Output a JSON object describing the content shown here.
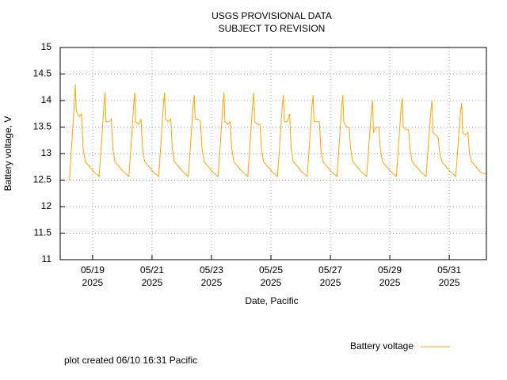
{
  "chart_data": {
    "type": "line",
    "title": "USGS PROVISIONAL DATA",
    "subtitle": "SUBJECT TO REVISION",
    "x_label": "Date, Pacific",
    "y_label": "Battery voltage, V",
    "footer": "plot created 06/10 16:31 Pacific",
    "legend": "bottom-right",
    "grid": true,
    "xlim": [
      17.91,
      32.25
    ],
    "ylim": [
      11,
      15
    ],
    "yticks": [
      11,
      11.5,
      12,
      12.5,
      13,
      13.5,
      14,
      14.5,
      15
    ],
    "xticks": [
      {
        "value": 19,
        "label": "05/19 2025"
      },
      {
        "value": 21,
        "label": "05/21 2025"
      },
      {
        "value": 23,
        "label": "05/23 2025"
      },
      {
        "value": 25,
        "label": "05/25 2025"
      },
      {
        "value": 27,
        "label": "05/27 2025"
      },
      {
        "value": 29,
        "label": "05/29 2025"
      },
      {
        "value": 31,
        "label": "05/31 2025"
      }
    ],
    "x": [
      18.22,
      18.3,
      18.38,
      18.42,
      18.45,
      18.55,
      18.63,
      18.68,
      18.75,
      18.9,
      19.05,
      19.22,
      19.3,
      19.38,
      19.42,
      19.45,
      19.55,
      19.63,
      19.68,
      19.75,
      19.9,
      20.05,
      20.22,
      20.3,
      20.38,
      20.42,
      20.45,
      20.55,
      20.63,
      20.68,
      20.75,
      20.9,
      21.05,
      21.22,
      21.3,
      21.38,
      21.42,
      21.45,
      21.55,
      21.63,
      21.68,
      21.75,
      21.9,
      22.05,
      22.22,
      22.3,
      22.38,
      22.42,
      22.45,
      22.55,
      22.63,
      22.68,
      22.75,
      22.9,
      23.05,
      23.22,
      23.3,
      23.38,
      23.42,
      23.45,
      23.55,
      23.63,
      23.68,
      23.75,
      23.9,
      24.05,
      24.22,
      24.3,
      24.38,
      24.42,
      24.45,
      24.55,
      24.63,
      24.68,
      24.75,
      24.9,
      25.05,
      25.22,
      25.3,
      25.38,
      25.42,
      25.45,
      25.55,
      25.63,
      25.68,
      25.75,
      25.9,
      26.05,
      26.22,
      26.3,
      26.38,
      26.42,
      26.45,
      26.55,
      26.63,
      26.68,
      26.75,
      26.9,
      27.05,
      27.22,
      27.3,
      27.38,
      27.42,
      27.45,
      27.55,
      27.63,
      27.68,
      27.75,
      27.9,
      28.05,
      28.22,
      28.3,
      28.38,
      28.42,
      28.45,
      28.55,
      28.63,
      28.68,
      28.75,
      28.9,
      29.05,
      29.22,
      29.3,
      29.38,
      29.42,
      29.45,
      29.55,
      29.63,
      29.68,
      29.75,
      29.9,
      30.05,
      30.22,
      30.3,
      30.38,
      30.42,
      30.45,
      30.55,
      30.63,
      30.68,
      30.75,
      30.9,
      31.05,
      31.22,
      31.3,
      31.38,
      31.42,
      31.45,
      31.55,
      31.63,
      31.68,
      31.75,
      31.9,
      32.05,
      32.25
    ],
    "series": [
      {
        "name": "Battery voltage",
        "color": "#ffa500",
        "values": [
          12.5,
          13.2,
          13.9,
          14.3,
          13.8,
          13.7,
          13.75,
          13.1,
          12.85,
          12.75,
          12.65,
          12.57,
          13.2,
          13.9,
          14.15,
          13.6,
          13.6,
          13.65,
          13.1,
          12.85,
          12.75,
          12.65,
          12.57,
          13.2,
          13.9,
          14.15,
          13.6,
          13.55,
          13.65,
          13.1,
          12.85,
          12.75,
          12.65,
          12.57,
          13.2,
          13.9,
          14.15,
          13.65,
          13.6,
          13.65,
          13.1,
          12.85,
          12.75,
          12.65,
          12.57,
          13.2,
          13.9,
          14.1,
          13.65,
          13.65,
          13.6,
          13.1,
          12.85,
          12.75,
          12.65,
          12.57,
          13.2,
          13.9,
          14.15,
          13.6,
          13.55,
          13.6,
          13.1,
          12.85,
          12.75,
          12.65,
          12.57,
          13.2,
          13.9,
          14.15,
          13.6,
          13.55,
          13.55,
          13.1,
          12.85,
          12.75,
          12.65,
          12.57,
          13.2,
          13.9,
          14.1,
          13.6,
          13.6,
          13.75,
          13.1,
          12.85,
          12.75,
          12.65,
          12.57,
          13.2,
          13.9,
          14.1,
          13.6,
          13.6,
          13.6,
          13.1,
          12.85,
          12.75,
          12.65,
          12.57,
          13.2,
          13.9,
          14.1,
          13.6,
          13.5,
          13.5,
          13.1,
          12.85,
          12.75,
          12.65,
          12.57,
          13.2,
          13.8,
          14.0,
          13.4,
          13.5,
          13.5,
          13.1,
          12.85,
          12.75,
          12.65,
          12.57,
          13.2,
          13.85,
          14.05,
          13.5,
          13.45,
          13.45,
          13.1,
          12.85,
          12.75,
          12.65,
          12.57,
          13.2,
          13.8,
          14.0,
          13.4,
          13.35,
          13.3,
          13.0,
          12.85,
          12.75,
          12.65,
          12.57,
          13.2,
          13.8,
          13.95,
          13.4,
          13.35,
          13.4,
          13.0,
          12.85,
          12.75,
          12.65,
          12.6
        ]
      }
    ]
  }
}
